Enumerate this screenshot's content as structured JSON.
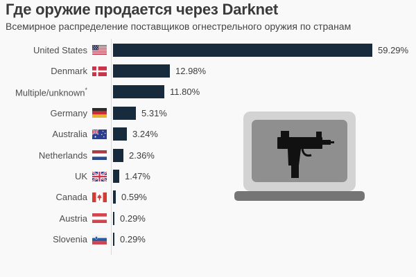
{
  "title": "Где оружие продается через Darknet",
  "subtitle": "Всемирное распределение поставщиков огнестрельного оружия по странам",
  "chart_data": {
    "type": "bar",
    "orientation": "horizontal",
    "title": "Где оружие продается через Darknet",
    "subtitle": "Всемирное распределение поставщиков огнестрельного оружия по странам",
    "unit": "%",
    "xlim": [
      0,
      60
    ],
    "grid": false,
    "legend": false,
    "categories": [
      "United States",
      "Denmark",
      "Multiple/unknown",
      "Germany",
      "Australia",
      "Netherlands",
      "UK",
      "Canada",
      "Austria",
      "Slovenia"
    ],
    "category_suffixes": [
      "",
      "",
      "*",
      "",
      "",
      "",
      "",
      "",
      "",
      ""
    ],
    "values": [
      59.29,
      12.98,
      11.8,
      5.31,
      3.24,
      2.36,
      1.47,
      0.59,
      0.29,
      0.29
    ],
    "value_labels": [
      "59.29%",
      "12.98%",
      "11.80%",
      "5.31%",
      "3.24%",
      "2.36%",
      "1.47%",
      "0.59%",
      "0.29%",
      "0.29%"
    ],
    "flags": [
      "united-states",
      "denmark",
      null,
      "germany",
      "australia",
      "netherlands",
      "uk",
      "canada",
      "austria",
      "slovenia"
    ]
  },
  "illustration": {
    "icons": [
      "laptop-icon",
      "uzi-gun-icon"
    ]
  },
  "colors": {
    "background": "#f9f9f9",
    "bar": "#182b3d",
    "axis_line": "#d9d9d9",
    "title_text": "#3a3a3a",
    "label_text": "#4d4d4d",
    "laptop_body": "#d3d3d3",
    "laptop_screen": "#8f8f8f",
    "laptop_base": "#757575",
    "gun": "#111111"
  }
}
